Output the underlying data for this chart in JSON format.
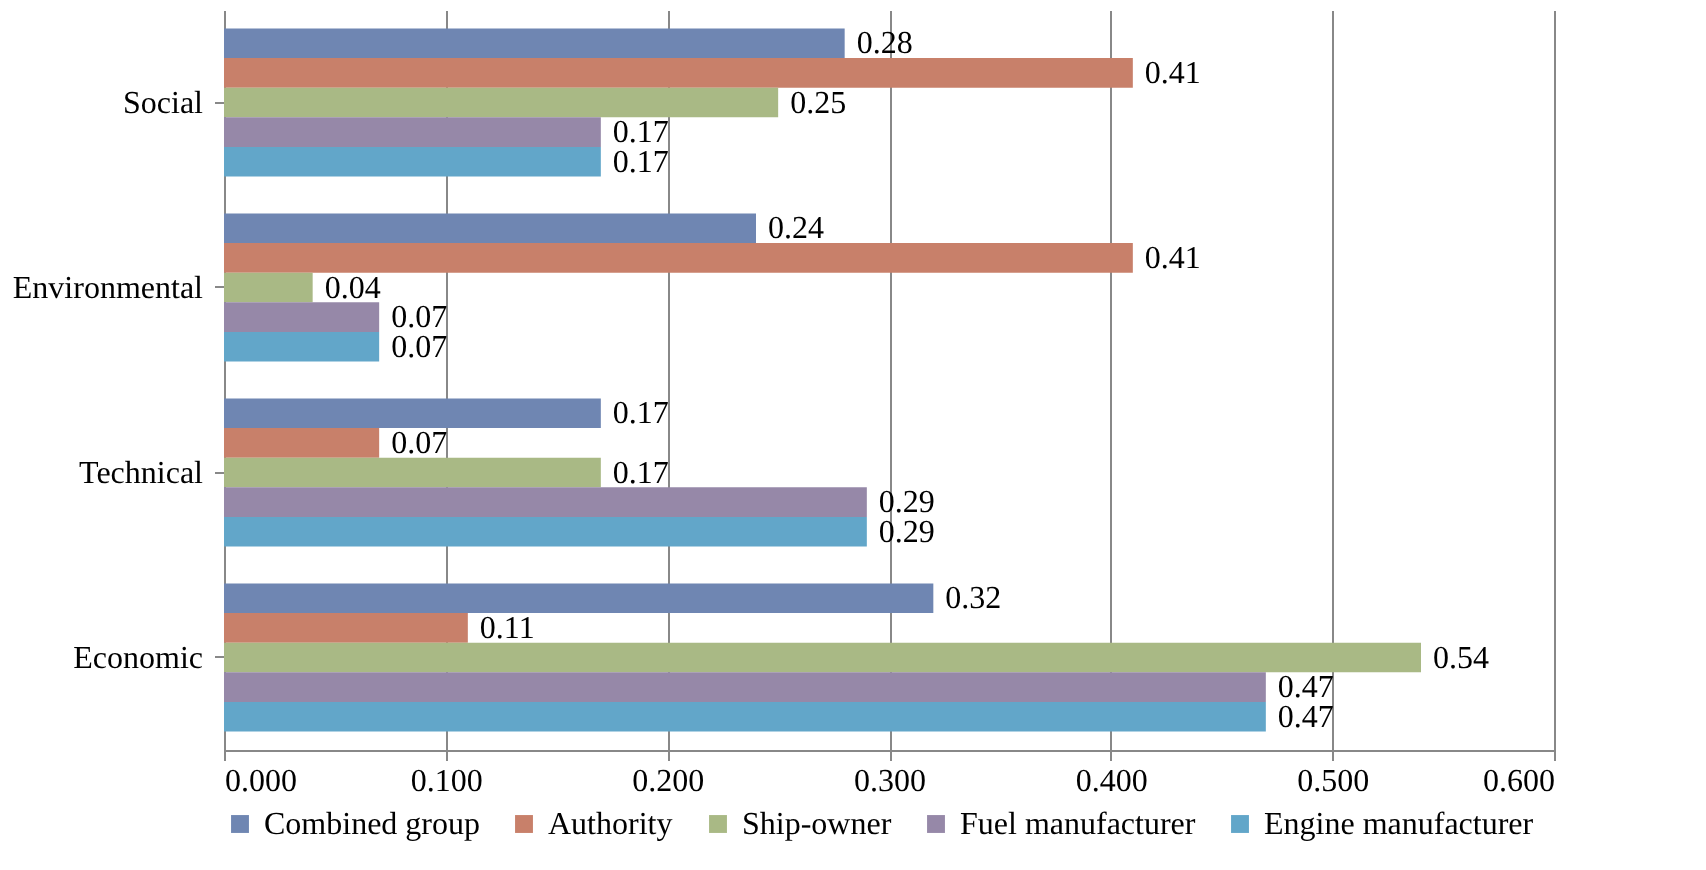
{
  "chart_data": {
    "type": "bar",
    "orientation": "horizontal",
    "categories": [
      "Social",
      "Environmental",
      "Technical",
      "Economic"
    ],
    "series": [
      {
        "name": "Combined group",
        "color": "#6f86b2",
        "values": [
          0.28,
          0.24,
          0.17,
          0.32
        ]
      },
      {
        "name": "Authority",
        "color": "#c8806a",
        "values": [
          0.41,
          0.41,
          0.07,
          0.11
        ]
      },
      {
        "name": "Ship-owner",
        "color": "#a9b985",
        "values": [
          0.25,
          0.04,
          0.17,
          0.54
        ]
      },
      {
        "name": "Fuel manufacturer",
        "color": "#9688a8",
        "values": [
          0.17,
          0.07,
          0.29,
          0.47
        ]
      },
      {
        "name": "Engine manufacturer",
        "color": "#62a6c9",
        "values": [
          0.17,
          0.07,
          0.29,
          0.47
        ]
      }
    ],
    "xlim": [
      0,
      0.6
    ],
    "xticks": [
      {
        "value": 0,
        "label": "0.000"
      },
      {
        "value": 0.1,
        "label": "0.100"
      },
      {
        "value": 0.2,
        "label": "0.200"
      },
      {
        "value": 0.3,
        "label": "0.300"
      },
      {
        "value": 0.4,
        "label": "0.400"
      },
      {
        "value": 0.5,
        "label": "0.500"
      },
      {
        "value": 0.6,
        "label": "0.600"
      }
    ],
    "grid": "x",
    "legend": "bottom",
    "data_labels": true
  }
}
